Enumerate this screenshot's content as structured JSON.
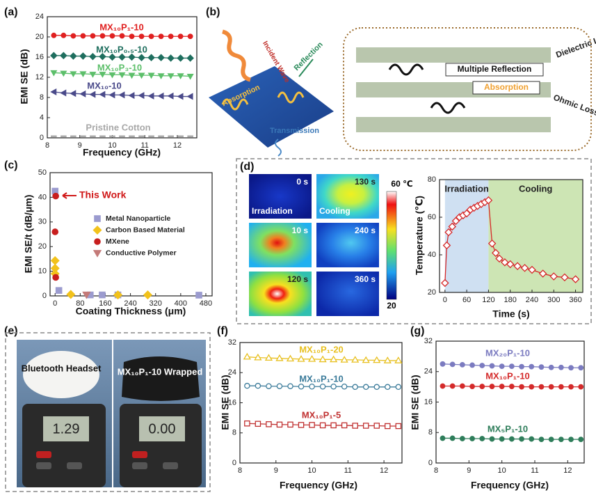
{
  "panel_labels": [
    "(a)",
    "(b)",
    "(c)",
    "(d)",
    "(e)",
    "(f)",
    "(g)"
  ],
  "diagram_b": {
    "incident": "Incident Wave",
    "reflection": "Reflection",
    "absorption": "Absorption",
    "transmission": "Transmission",
    "dielectric": "Dielectric Loss",
    "multiple": "Multiple Reflection",
    "absorption_inner": "Absorption",
    "ohmic": "Ohmic Loss"
  },
  "thermal": {
    "frames": [
      "0 s",
      "130 s",
      "10 s",
      "240 s",
      "120 s",
      "360 s"
    ],
    "phases": [
      "Irradiation",
      "Cooling"
    ],
    "colorbar_max": "60 ℃",
    "colorbar_min": "20"
  },
  "photo_e": {
    "left_label": "Bluetooth Headset",
    "right_label": "MX₁₀P₁-10 Wrapped",
    "left_reading": "1.29",
    "right_reading": "0.00"
  },
  "chart_data": [
    {
      "type": "line",
      "xlabel": "Frequency (GHz)",
      "ylabel": "EMI SE (dB)",
      "xlim": [
        8,
        12.6
      ],
      "xticks": [
        8,
        9,
        10,
        11,
        12
      ],
      "ylim": [
        0,
        24
      ],
      "yticks": [
        0,
        4,
        8,
        12,
        16,
        20,
        24
      ],
      "x": [
        8.2,
        8.5,
        8.8,
        9.1,
        9.4,
        9.7,
        10,
        10.3,
        10.6,
        10.9,
        11.2,
        11.5,
        11.8,
        12.1,
        12.4
      ],
      "series": [
        {
          "name": "MX₁₀P₁-10",
          "color": "#e02020",
          "marker": "circle",
          "values": [
            20.3,
            20.3,
            20.2,
            20.2,
            20.2,
            20.2,
            20.2,
            20.2,
            20.1,
            20.1,
            20.1,
            20.1,
            20.1,
            20.1,
            20.1
          ]
        },
        {
          "name": "MX₁₀P₀.₅-10",
          "color": "#1e6e5e",
          "marker": "diamond",
          "values": [
            16.3,
            16.3,
            16.2,
            16.2,
            16.1,
            16.1,
            16,
            16,
            16,
            15.9,
            15.9,
            15.9,
            15.8,
            15.8,
            15.8
          ]
        },
        {
          "name": "MX₁₀P₃-10",
          "color": "#5cbf6a",
          "marker": "triangle-down",
          "values": [
            12.9,
            12.8,
            12.7,
            12.7,
            12.6,
            12.6,
            12.5,
            12.5,
            12.4,
            12.4,
            12.4,
            12.3,
            12.3,
            12.3,
            12.2
          ]
        },
        {
          "name": "MX₁₀-10",
          "color": "#4a4a8a",
          "marker": "triangle-left",
          "values": [
            9.1,
            8.9,
            8.8,
            8.7,
            8.6,
            8.6,
            8.5,
            8.5,
            8.4,
            8.4,
            8.3,
            8.3,
            8.3,
            8.2,
            8.2
          ]
        },
        {
          "name": "Pristine Cotton",
          "color": "#a8a8a8",
          "marker": "dash",
          "values": [
            0.3,
            0.3,
            0.3,
            0.3,
            0.3,
            0.3,
            0.3,
            0.3,
            0.3,
            0.3,
            0.3,
            0.3,
            0.3,
            0.3,
            0.3
          ]
        }
      ]
    },
    {
      "type": "scatter",
      "xlabel": "Coating Thickness (μm)",
      "ylabel": "EMI SE/t (dB/μm)",
      "xlim": [
        -16,
        500
      ],
      "xticks": [
        0,
        80,
        160,
        240,
        320,
        400,
        480
      ],
      "ylim": [
        0,
        50
      ],
      "yticks": [
        0,
        10,
        20,
        30,
        40,
        50
      ],
      "annotation": "This Work",
      "series": [
        {
          "name": "Metal Nanoparticle",
          "color": "#9b9bcf",
          "marker": "square",
          "x": [
            0,
            12,
            112,
            150,
            200,
            458
          ],
          "values": [
            42.5,
            2.2,
            0.4,
            0.4,
            0.4,
            0.3
          ]
        },
        {
          "name": "Carbon Based Material",
          "color": "#f2c21b",
          "marker": "diamond",
          "x": [
            0,
            0,
            0,
            50,
            200,
            295
          ],
          "values": [
            14.3,
            11.2,
            9,
            0.6,
            0.4,
            0.4
          ]
        },
        {
          "name": "MXene",
          "color": "#c81e1e",
          "marker": "circle",
          "x": [
            2,
            0,
            2
          ],
          "values": [
            40.5,
            26,
            7.5
          ]
        },
        {
          "name": "Conductive Polymer",
          "color": "#c47a78",
          "marker": "triangle-down",
          "x": [
            100
          ],
          "values": [
            0.5
          ]
        }
      ]
    },
    {
      "type": "line",
      "xlabel": "Time (s)",
      "ylabel": "Temperature (℃)",
      "xlim": [
        -15,
        380
      ],
      "xticks": [
        0,
        60,
        120,
        180,
        240,
        300,
        360
      ],
      "ylim": [
        20,
        80
      ],
      "yticks": [
        20,
        40,
        60,
        80
      ],
      "regions": [
        {
          "label": "Irradiation",
          "range": [
            0,
            120
          ],
          "color": "#cfe0f2"
        },
        {
          "label": "Cooling",
          "range": [
            120,
            380
          ],
          "color": "#cde5b4"
        }
      ],
      "x": [
        0,
        5,
        10,
        20,
        30,
        40,
        50,
        60,
        70,
        80,
        90,
        100,
        110,
        120,
        130,
        140,
        150,
        165,
        180,
        200,
        220,
        240,
        270,
        300,
        330,
        360
      ],
      "series": [
        {
          "name": "Temperature",
          "color": "#d62728",
          "marker": "diamond",
          "open": true,
          "values": [
            25,
            45,
            52,
            55,
            58,
            60,
            61,
            62,
            64,
            65,
            66,
            67,
            68,
            69,
            46,
            41,
            38,
            36,
            35,
            34,
            33,
            32,
            30,
            28.5,
            28,
            27
          ]
        }
      ]
    },
    {
      "type": "line",
      "xlabel": "Frequency (GHz)",
      "ylabel": "EMI SE (dB)",
      "xlim": [
        8,
        12.5
      ],
      "xticks": [
        8,
        9,
        10,
        11,
        12
      ],
      "ylim": [
        0,
        32
      ],
      "yticks": [
        0,
        8,
        16,
        24,
        32
      ],
      "x": [
        8.2,
        8.5,
        8.8,
        9.1,
        9.4,
        9.7,
        10,
        10.3,
        10.6,
        10.9,
        11.2,
        11.5,
        11.8,
        12.1,
        12.4
      ],
      "series": [
        {
          "name": "MX₁₀P₁-20",
          "color": "#e8c020",
          "marker": "triangle-up",
          "open": true,
          "values": [
            28.2,
            28,
            27.9,
            27.8,
            27.7,
            27.6,
            27.6,
            27.5,
            27.5,
            27.4,
            27.4,
            27.3,
            27.3,
            27.2,
            27.2
          ]
        },
        {
          "name": "MX₁₀P₁-10",
          "color": "#3b7b9a",
          "marker": "circle",
          "open": true,
          "values": [
            20.5,
            20.5,
            20.4,
            20.4,
            20.4,
            20.3,
            20.3,
            20.3,
            20.3,
            20.3,
            20.2,
            20.2,
            20.2,
            20.2,
            20.2
          ]
        },
        {
          "name": "MX₁₀P₁-5",
          "color": "#c03030",
          "marker": "square",
          "open": true,
          "values": [
            10.5,
            10.4,
            10.3,
            10.2,
            10.2,
            10.1,
            10.1,
            10,
            10,
            10,
            9.9,
            9.9,
            9.9,
            9.8,
            9.8
          ]
        }
      ]
    },
    {
      "type": "line",
      "xlabel": "Frequency (GHz)",
      "ylabel": "EMI SE (dB)",
      "xlim": [
        8,
        12.5
      ],
      "xticks": [
        8,
        9,
        10,
        11,
        12
      ],
      "ylim": [
        0,
        32
      ],
      "yticks": [
        0,
        8,
        16,
        24,
        32
      ],
      "x": [
        8.2,
        8.5,
        8.8,
        9.1,
        9.4,
        9.7,
        10,
        10.3,
        10.6,
        10.9,
        11.2,
        11.5,
        11.8,
        12.1,
        12.4
      ],
      "series": [
        {
          "name": "MX₂₀P₁-10",
          "color": "#7b7bc0",
          "marker": "circle",
          "values": [
            26,
            25.9,
            25.8,
            25.7,
            25.6,
            25.5,
            25.4,
            25.4,
            25.3,
            25.3,
            25.2,
            25.1,
            25.1,
            25,
            25
          ]
        },
        {
          "name": "MX₁₀P₁-10",
          "color": "#d42a2a",
          "marker": "circle",
          "values": [
            20.2,
            20.2,
            20.2,
            20.1,
            20.1,
            20.1,
            20.1,
            20.1,
            20,
            20,
            20,
            20,
            20,
            20,
            20
          ]
        },
        {
          "name": "MX₅P₁-10",
          "color": "#2e7d5a",
          "marker": "circle",
          "values": [
            6.5,
            6.5,
            6.4,
            6.4,
            6.4,
            6.3,
            6.3,
            6.3,
            6.3,
            6.3,
            6.2,
            6.2,
            6.2,
            6.2,
            6.2
          ]
        }
      ]
    }
  ]
}
